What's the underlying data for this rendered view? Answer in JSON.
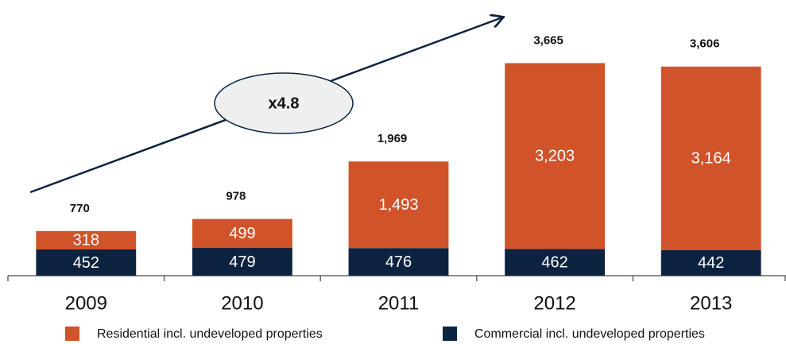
{
  "chart_data": {
    "type": "stacked_bar",
    "categories": [
      "2009",
      "2010",
      "2011",
      "2012",
      "2013"
    ],
    "series": [
      {
        "name": "Commercial incl. undeveloped properties",
        "color": "#0c2340",
        "values": [
          452,
          479,
          476,
          462,
          442
        ]
      },
      {
        "name": "Residential incl. undeveloped properties",
        "color": "#d0532a",
        "values": [
          318,
          499,
          1493,
          3203,
          3164
        ],
        "value_labels": [
          "318",
          "499",
          "1,493",
          "3,203",
          "3,164"
        ]
      }
    ],
    "totals": [
      770,
      978,
      1969,
      3665,
      3606
    ],
    "total_labels": [
      "770",
      "978",
      "1,969",
      "3,665",
      "3,606"
    ],
    "annotation": "x4.8",
    "ylim": [
      0,
      4000
    ],
    "legend": "bottom"
  }
}
